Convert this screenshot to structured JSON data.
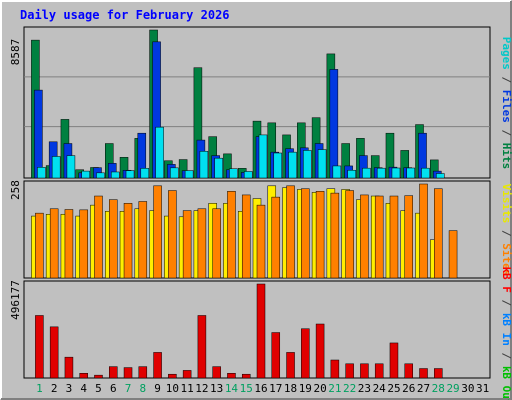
{
  "title": "Daily usage for February 2026",
  "panels": {
    "top": {
      "max_label": "8587",
      "ylim": [
        0,
        8587
      ]
    },
    "mid": {
      "max_label": "258",
      "ylim": [
        0,
        258
      ]
    },
    "bottom": {
      "max_label": "496177",
      "ylim": [
        0,
        496177
      ]
    }
  },
  "right_labels": {
    "top": [
      {
        "text": "Pages",
        "color": "#00C8C8"
      },
      {
        "text": " / ",
        "color": "#404040"
      },
      {
        "text": "Files",
        "color": "#0038E0"
      },
      {
        "text": " / ",
        "color": "#404040"
      },
      {
        "text": "Hits",
        "color": "#008040"
      }
    ],
    "mid": [
      {
        "text": "Visits",
        "color": "#E8E800"
      },
      {
        "text": " / ",
        "color": "#404040"
      },
      {
        "text": "Sites",
        "color": "#FF8000"
      }
    ],
    "bottom": [
      {
        "text": "kB F",
        "color": "#FF0000"
      },
      {
        "text": " / ",
        "color": "#404040"
      },
      {
        "text": "kB In",
        "color": "#0080FF"
      },
      {
        "text": " / ",
        "color": "#404040"
      },
      {
        "text": "kB Out",
        "color": "#00C000"
      }
    ]
  },
  "colors": {
    "background": "#C0C0C0",
    "border_light": "#FFFFFF",
    "border_dark": "#808080",
    "title": "#0000FF",
    "hits": "#008040",
    "files": "#0038E0",
    "pages": "#00E0F0",
    "visits": "#FFEE00",
    "sites": "#FF8000",
    "kbytes": "#E00000",
    "day_weekday": "#000000",
    "day_weekend": "#00A060"
  },
  "chart_data": {
    "type": "bar",
    "categories": [
      "1",
      "2",
      "3",
      "4",
      "5",
      "6",
      "7",
      "8",
      "9",
      "10",
      "11",
      "12",
      "13",
      "14",
      "15",
      "16",
      "17",
      "18",
      "19",
      "20",
      "21",
      "22",
      "23",
      "24",
      "25",
      "26",
      "27",
      "28",
      "29",
      "30",
      "31"
    ],
    "weekend_days": [
      1,
      7,
      8,
      14,
      15,
      21,
      22,
      28,
      29
    ],
    "series": [
      {
        "name": "Hits",
        "panel": "top",
        "values": [
          8000,
          720,
          3400,
          480,
          610,
          2000,
          1200,
          2300,
          8587,
          1000,
          1070,
          6400,
          2400,
          1400,
          560,
          3300,
          3200,
          2500,
          3200,
          3500,
          7200,
          2000,
          2300,
          1300,
          2600,
          1600,
          3100,
          1050,
          0,
          0,
          0
        ]
      },
      {
        "name": "Files",
        "panel": "top",
        "values": [
          5100,
          2100,
          2000,
          300,
          600,
          850,
          450,
          2600,
          7900,
          790,
          420,
          2200,
          1300,
          480,
          320,
          2400,
          1500,
          1700,
          1750,
          2000,
          6300,
          700,
          1300,
          600,
          630,
          600,
          2600,
          400,
          0,
          0,
          0
        ]
      },
      {
        "name": "Pages",
        "panel": "top",
        "values": [
          620,
          1250,
          1300,
          400,
          300,
          350,
          430,
          560,
          2950,
          590,
          430,
          1550,
          1150,
          540,
          380,
          2500,
          1450,
          1500,
          1600,
          1650,
          700,
          450,
          570,
          570,
          580,
          580,
          570,
          260,
          0,
          0,
          0
        ]
      },
      {
        "name": "Visits",
        "panel": "mid",
        "values": [
          170,
          175,
          175,
          170,
          200,
          183,
          183,
          190,
          185,
          170,
          168,
          185,
          205,
          205,
          183,
          218,
          253,
          248,
          243,
          235,
          245,
          243,
          215,
          225,
          205,
          185,
          178,
          105,
          0,
          0,
          0
        ]
      },
      {
        "name": "Sites",
        "panel": "mid",
        "values": [
          178,
          190,
          188,
          187,
          225,
          215,
          205,
          210,
          253,
          240,
          185,
          190,
          190,
          238,
          228,
          200,
          222,
          253,
          245,
          238,
          233,
          240,
          228,
          225,
          225,
          226,
          258,
          245,
          130,
          0,
          0
        ]
      },
      {
        "name": "kB F",
        "panel": "bottom",
        "values": [
          330000,
          270000,
          110000,
          25000,
          15000,
          60000,
          55000,
          60000,
          135000,
          20000,
          40000,
          330000,
          60000,
          25000,
          20000,
          496177,
          240000,
          135000,
          260000,
          285000,
          95000,
          75000,
          75000,
          75000,
          185000,
          75000,
          50000,
          50000,
          0,
          0,
          0
        ]
      }
    ]
  }
}
